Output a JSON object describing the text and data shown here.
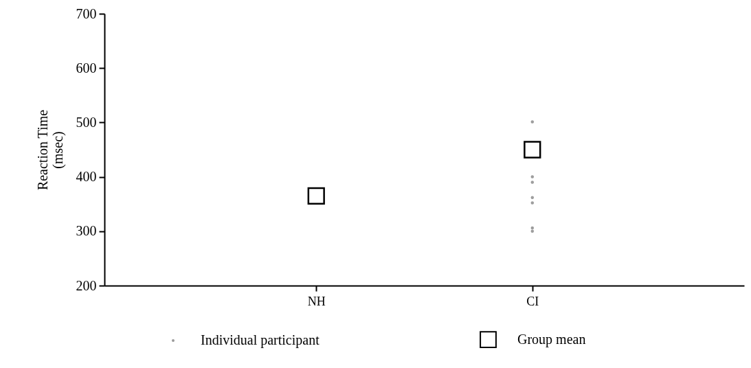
{
  "chart_data": {
    "type": "scatter",
    "ylabel": "Reaction Time\n(msec)",
    "categories": [
      "NH",
      "CI"
    ],
    "ylim": [
      200,
      700
    ],
    "yticks": [
      200,
      300,
      400,
      500,
      600,
      700
    ],
    "grid": false,
    "legend": "bottom",
    "series": [
      {
        "name": "Individual participant",
        "color": "#9a9a9a",
        "marker": "circle",
        "x": [
          "CI",
          "CI",
          "CI",
          "CI",
          "CI",
          "CI",
          "CI"
        ],
        "values": [
          501,
          400,
          390,
          362,
          352,
          306,
          300
        ]
      },
      {
        "name": "Group mean",
        "color": "#000000",
        "marker": "square",
        "x": [
          "NH",
          "CI"
        ],
        "values": [
          365,
          450
        ]
      }
    ]
  }
}
